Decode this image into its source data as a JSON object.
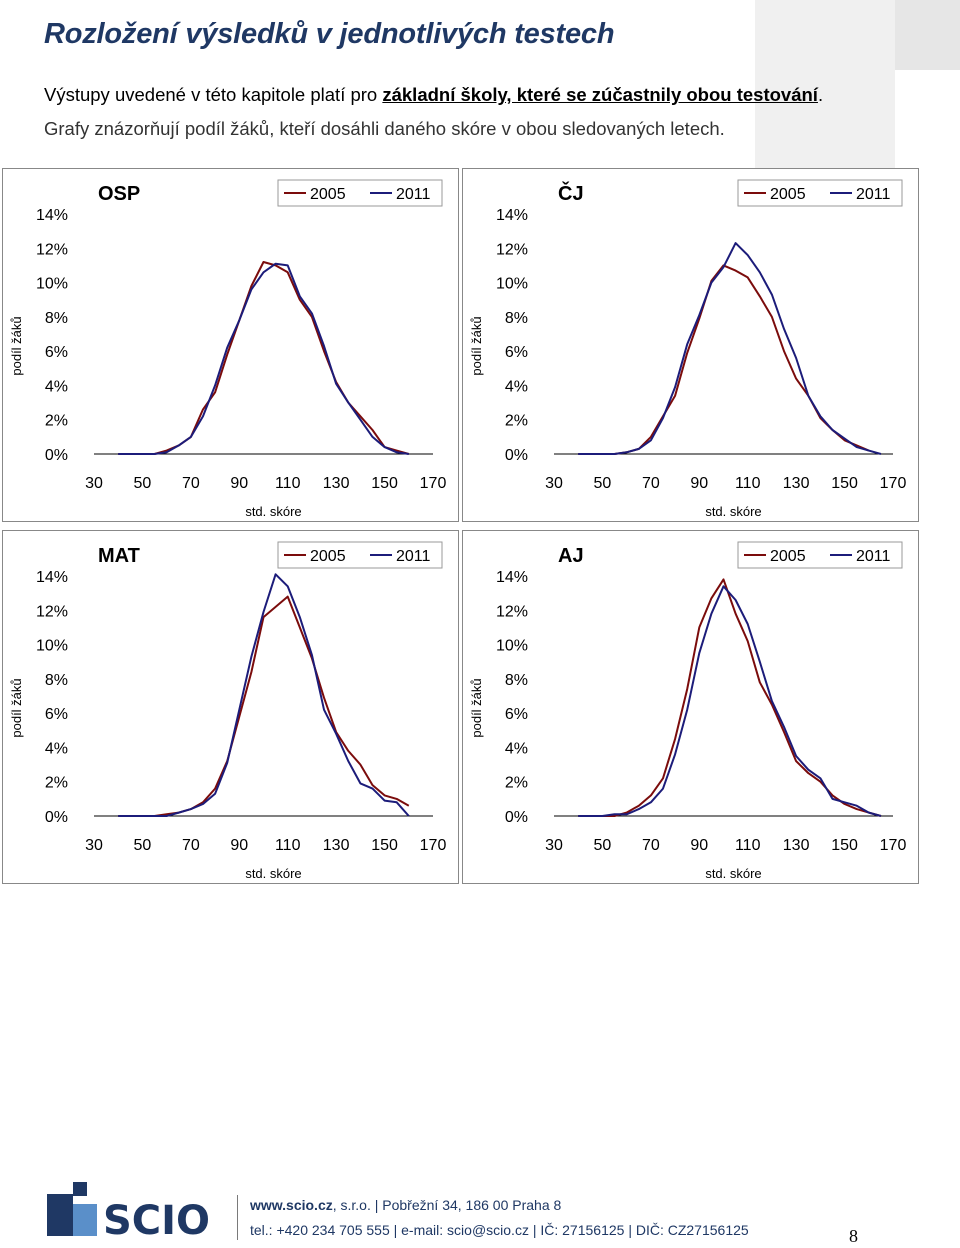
{
  "page": {
    "title": "Rozložení výsledků v jednotlivých testech",
    "intro_line1_pre": "Výstupy uvedené v této kapitole platí pro ",
    "intro_line1_bold": "základní školy, které se zúčastnily obou testování",
    "intro_line1_post": ".",
    "intro_line2": "Grafy znázorňují podíl žáků, kteří dosáhli daného skóre v obou sledovaných letech.",
    "footer_web_bold": "www.scio.cz",
    "footer_web_rest": ", s.r.o.  |  Pobřežní 34, 186 00 Praha 8",
    "footer_contact": "tel.: +420 234 705 555  |  e-mail: scio@scio.cz  |  IČ: 27156125  |  DIČ: CZ27156125",
    "page_number": "8",
    "logo_text": "SCIO"
  },
  "colors": {
    "series_2005": "#7b0c0c",
    "series_2011": "#1c1c7a",
    "brand": "#1f3864"
  },
  "chart_data": [
    {
      "type": "line",
      "title": "OSP",
      "xlabel": "std. skóre",
      "ylabel": "podíl žáků",
      "xlim": [
        30,
        170
      ],
      "ylim": [
        0,
        14
      ],
      "xticks": [
        "30",
        "50",
        "70",
        "90",
        "110",
        "130",
        "150",
        "170"
      ],
      "yticks": [
        "0%",
        "2%",
        "4%",
        "6%",
        "8%",
        "10%",
        "12%",
        "14%"
      ],
      "legend_position": "top-right",
      "series": [
        {
          "name": "2005",
          "color": "#7b0c0c",
          "x": [
            40,
            45,
            50,
            55,
            60,
            65,
            70,
            75,
            80,
            85,
            90,
            95,
            100,
            105,
            110,
            115,
            120,
            125,
            130,
            135,
            140,
            145,
            150,
            155,
            160
          ],
          "y": [
            0,
            0,
            0,
            0,
            0.2,
            0.5,
            1,
            2.6,
            3.6,
            5.8,
            7.8,
            9.8,
            11.2,
            11,
            10.6,
            9,
            8,
            6,
            4.2,
            3,
            2.2,
            1.4,
            0.4,
            0.2,
            0
          ]
        },
        {
          "name": "2011",
          "color": "#1c1c7a",
          "x": [
            40,
            45,
            50,
            55,
            60,
            65,
            70,
            75,
            80,
            85,
            90,
            95,
            100,
            105,
            110,
            115,
            120,
            125,
            130,
            135,
            140,
            145,
            150,
            155,
            160
          ],
          "y": [
            0,
            0,
            0,
            0,
            0.1,
            0.5,
            1,
            2.2,
            4,
            6.2,
            7.8,
            9.6,
            10.6,
            11.1,
            11,
            9.2,
            8.2,
            6.3,
            4.1,
            3,
            2,
            1,
            0.4,
            0.1,
            0
          ]
        }
      ]
    },
    {
      "type": "line",
      "title": "ČJ",
      "xlabel": "std. skóre",
      "ylabel": "podíl žáků",
      "xlim": [
        30,
        170
      ],
      "ylim": [
        0,
        14
      ],
      "xticks": [
        "30",
        "50",
        "70",
        "90",
        "110",
        "130",
        "150",
        "170"
      ],
      "yticks": [
        "0%",
        "2%",
        "4%",
        "6%",
        "8%",
        "10%",
        "12%",
        "14%"
      ],
      "legend_position": "top-right",
      "series": [
        {
          "name": "2005",
          "color": "#7b0c0c",
          "x": [
            40,
            45,
            50,
            55,
            60,
            65,
            70,
            75,
            80,
            85,
            90,
            95,
            100,
            105,
            110,
            115,
            120,
            125,
            130,
            135,
            140,
            145,
            150,
            155,
            160
          ],
          "y": [
            0,
            0,
            0,
            0,
            0.1,
            0.3,
            1,
            2.2,
            3.4,
            5.9,
            7.9,
            10.1,
            11,
            10.7,
            10.3,
            9.2,
            8,
            6,
            4.4,
            3.4,
            2.1,
            1.4,
            0.8,
            0.5,
            0.2
          ]
        },
        {
          "name": "2011",
          "color": "#1c1c7a",
          "x": [
            40,
            45,
            50,
            55,
            60,
            65,
            70,
            75,
            80,
            85,
            90,
            95,
            100,
            105,
            110,
            115,
            120,
            125,
            130,
            135,
            140,
            145,
            150,
            155,
            160,
            165
          ],
          "y": [
            0,
            0,
            0,
            0,
            0.1,
            0.3,
            0.8,
            2.1,
            3.9,
            6.4,
            8.1,
            10,
            10.9,
            12.3,
            11.6,
            10.6,
            9.3,
            7.3,
            5.6,
            3.4,
            2.2,
            1.4,
            0.9,
            0.4,
            0.2,
            0
          ]
        }
      ]
    },
    {
      "type": "line",
      "title": "MAT",
      "xlabel": "std. skóre",
      "ylabel": "podíl žáků",
      "xlim": [
        30,
        170
      ],
      "ylim": [
        0,
        14
      ],
      "xticks": [
        "30",
        "50",
        "70",
        "90",
        "110",
        "130",
        "150",
        "170"
      ],
      "yticks": [
        "0%",
        "2%",
        "4%",
        "6%",
        "8%",
        "10%",
        "12%",
        "14%"
      ],
      "legend_position": "top-right",
      "series": [
        {
          "name": "2005",
          "color": "#7b0c0c",
          "x": [
            40,
            45,
            50,
            55,
            60,
            65,
            70,
            75,
            80,
            85,
            90,
            95,
            100,
            105,
            110,
            115,
            120,
            125,
            130,
            135,
            140,
            145,
            150,
            155,
            160
          ],
          "y": [
            0,
            0,
            0,
            0,
            0.1,
            0.2,
            0.4,
            0.8,
            1.6,
            3.2,
            5.8,
            8.4,
            11.6,
            12.2,
            12.8,
            11,
            9.2,
            6.9,
            4.9,
            3.8,
            3,
            1.8,
            1.2,
            1,
            0.6
          ]
        },
        {
          "name": "2011",
          "color": "#1c1c7a",
          "x": [
            40,
            45,
            50,
            55,
            60,
            65,
            70,
            75,
            80,
            85,
            90,
            95,
            100,
            105,
            110,
            115,
            120,
            125,
            130,
            135,
            140,
            145,
            150,
            155,
            160
          ],
          "y": [
            0,
            0,
            0,
            0,
            0,
            0.2,
            0.4,
            0.7,
            1.3,
            3.1,
            6.2,
            9.3,
            11.9,
            14.1,
            13.4,
            11.6,
            9.4,
            6.2,
            4.8,
            3.2,
            1.9,
            1.6,
            0.9,
            0.8,
            0
          ]
        }
      ]
    },
    {
      "type": "line",
      "title": "AJ",
      "xlabel": "std. skóre",
      "ylabel": "podíl žáků",
      "xlim": [
        30,
        170
      ],
      "ylim": [
        0,
        14
      ],
      "xticks": [
        "30",
        "50",
        "70",
        "90",
        "110",
        "130",
        "150",
        "170"
      ],
      "yticks": [
        "0%",
        "2%",
        "4%",
        "6%",
        "8%",
        "10%",
        "12%",
        "14%"
      ],
      "legend_position": "top-right",
      "series": [
        {
          "name": "2005",
          "color": "#7b0c0c",
          "x": [
            40,
            45,
            50,
            55,
            60,
            65,
            70,
            75,
            80,
            85,
            90,
            95,
            100,
            105,
            110,
            115,
            120,
            125,
            130,
            135,
            140,
            145,
            150,
            155,
            160,
            165
          ],
          "y": [
            0,
            0,
            0,
            0,
            0.2,
            0.6,
            1.2,
            2.2,
            4.5,
            7.4,
            11,
            12.7,
            13.8,
            11.8,
            10.2,
            7.8,
            6.5,
            4.9,
            3.2,
            2.5,
            2,
            1.2,
            0.7,
            0.4,
            0.2,
            0
          ]
        },
        {
          "name": "2011",
          "color": "#1c1c7a",
          "x": [
            40,
            45,
            50,
            55,
            60,
            65,
            70,
            75,
            80,
            85,
            90,
            95,
            100,
            105,
            110,
            115,
            120,
            125,
            130,
            135,
            140,
            145,
            150,
            155,
            160,
            165
          ],
          "y": [
            0,
            0,
            0,
            0.1,
            0.1,
            0.4,
            0.8,
            1.6,
            3.6,
            6.2,
            9.5,
            11.8,
            13.4,
            12.6,
            11.2,
            9,
            6.7,
            5.2,
            3.5,
            2.7,
            2.2,
            1,
            0.8,
            0.6,
            0.2,
            0
          ]
        }
      ]
    }
  ]
}
